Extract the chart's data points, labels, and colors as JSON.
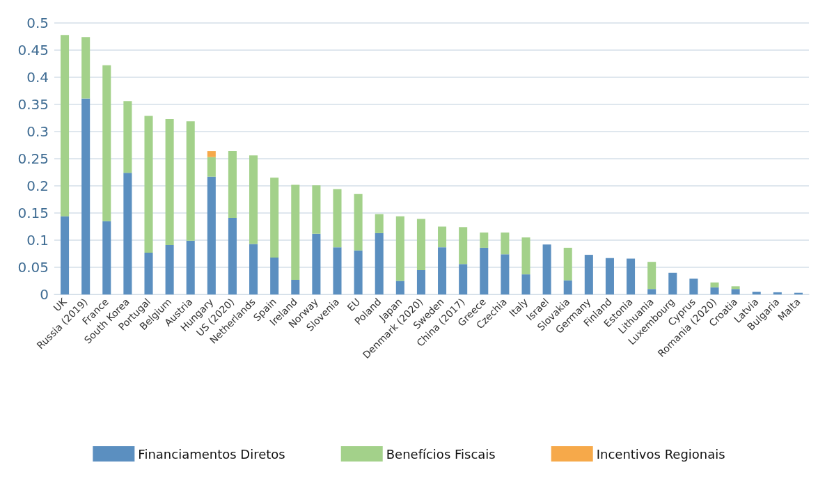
{
  "chart_data": {
    "type": "bar",
    "stacked": true,
    "categories": [
      "UK",
      "Russia (2019)",
      "France",
      "South Korea",
      "Portugal",
      "Belgium",
      "Austria",
      "Hungary",
      "US (2020)",
      "Netherlands",
      "Spain",
      "Ireland",
      "Norway",
      "Slovenia",
      "EU",
      "Poland",
      "Japan",
      "Denmark (2020)",
      "Sweden",
      "China (2017)",
      "Greece",
      "Czechia",
      "Italy",
      "Israel",
      "Slovakia",
      "Germany",
      "Finland",
      "Estonia",
      "Lithuania",
      "Luxembourg",
      "Cyprus",
      "Romania (2020)",
      "Croatia",
      "Latvia",
      "Bulgaria",
      "Malta"
    ],
    "series": [
      {
        "name": "Financiamentos Diretos",
        "color": "#5b8fc0",
        "values": [
          0.144,
          0.361,
          0.135,
          0.224,
          0.077,
          0.091,
          0.099,
          0.217,
          0.141,
          0.093,
          0.068,
          0.027,
          0.112,
          0.087,
          0.081,
          0.113,
          0.025,
          0.045,
          0.087,
          0.056,
          0.086,
          0.074,
          0.037,
          0.092,
          0.026,
          0.073,
          0.067,
          0.066,
          0.01,
          0.04,
          0.029,
          0.013,
          0.01,
          0.005,
          0.004,
          0.003
        ]
      },
      {
        "name": "Benefícios Fiscais",
        "color": "#a3d18a",
        "values": [
          0.334,
          0.113,
          0.287,
          0.132,
          0.252,
          0.232,
          0.22,
          0.036,
          0.123,
          0.163,
          0.147,
          0.175,
          0.089,
          0.107,
          0.104,
          0.035,
          0.119,
          0.094,
          0.038,
          0.068,
          0.028,
          0.04,
          0.068,
          0,
          0.06,
          0,
          0,
          0,
          0.05,
          0,
          0,
          0.009,
          0.005,
          0,
          0,
          0
        ]
      },
      {
        "name": "Incentivos Regionais",
        "color": "#f6a94a",
        "values": [
          0,
          0,
          0,
          0,
          0,
          0,
          0,
          0.011,
          0,
          0,
          0,
          0,
          0,
          0,
          0,
          0,
          0,
          0,
          0,
          0,
          0,
          0,
          0,
          0,
          0,
          0,
          0,
          0,
          0,
          0,
          0,
          0,
          0,
          0,
          0,
          0
        ]
      }
    ],
    "ylim": [
      0,
      0.5
    ],
    "yticks": [
      0,
      0.05,
      0.1,
      0.15,
      0.2,
      0.25,
      0.3,
      0.35,
      0.4,
      0.45,
      0.5
    ],
    "grid": "y",
    "legend": "bottom"
  }
}
